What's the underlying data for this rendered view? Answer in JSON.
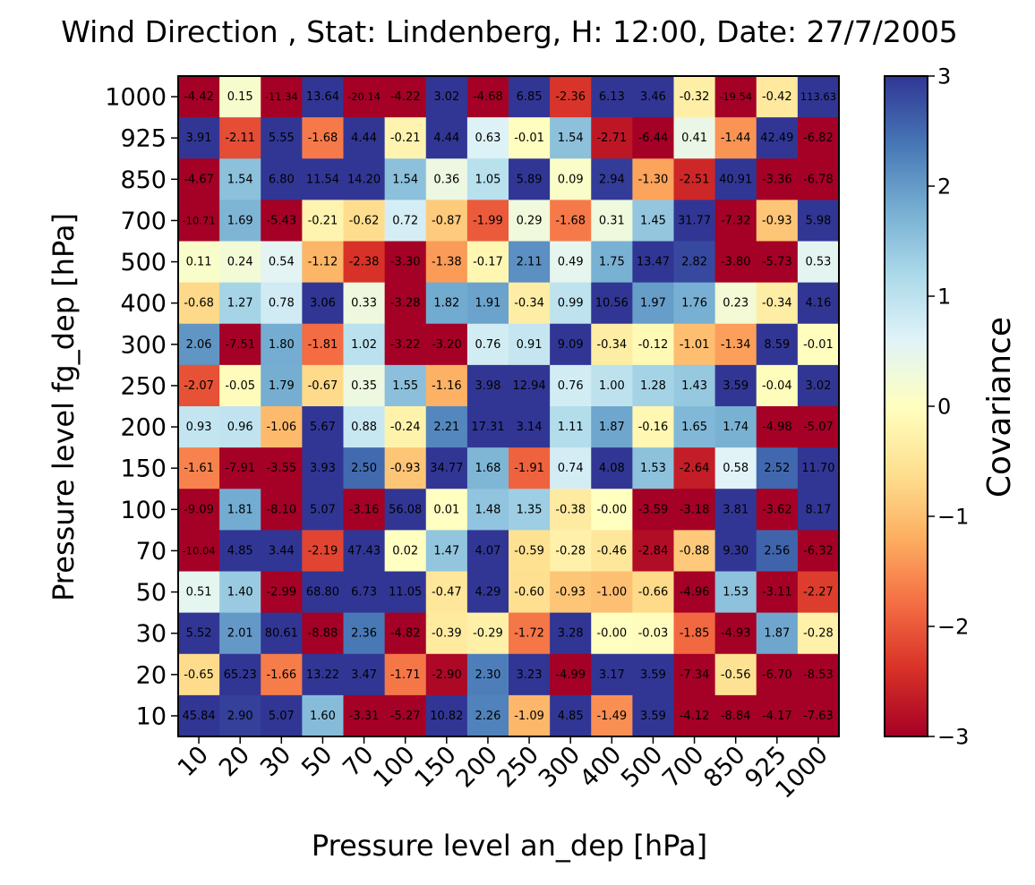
{
  "chart_data": {
    "type": "heatmap",
    "title": "Wind Direction , Stat: Lindenberg, H: 12:00, Date: 27/7/2005",
    "xlabel": "Pressure level an_dep [hPa]",
    "ylabel": "Pressure level fg_dep [hPa]",
    "x_categories": [
      "10",
      "20",
      "30",
      "50",
      "70",
      "100",
      "150",
      "200",
      "250",
      "300",
      "400",
      "500",
      "700",
      "850",
      "925",
      "1000"
    ],
    "y_categories": [
      "1000",
      "925",
      "850",
      "700",
      "500",
      "400",
      "300",
      "250",
      "200",
      "150",
      "100",
      "70",
      "50",
      "30",
      "20",
      "10"
    ],
    "colorbar": {
      "label": "Covariance",
      "range": [
        -3,
        3
      ],
      "ticks": [
        3,
        2,
        1,
        0,
        -1,
        -2,
        -3
      ],
      "tick_labels": [
        "3",
        "2",
        "1",
        "0",
        "−1",
        "−2",
        "−3"
      ],
      "colormap": "RdYlBu"
    },
    "values": [
      [
        "-4.42",
        "0.15",
        "-11.34",
        "13.64",
        "-20.14",
        "-4.22",
        "3.02",
        "-4.68",
        "6.85",
        "-2.36",
        "6.13",
        "3.46",
        "-0.32",
        "-19.54",
        "-0.42",
        "113.63"
      ],
      [
        "3.91",
        "-2.11",
        "5.55",
        "-1.68",
        "4.44",
        "-0.21",
        "4.44",
        "0.63",
        "-0.01",
        "1.54",
        "-2.71",
        "-6.44",
        "0.41",
        "-1.44",
        "42.49",
        "-6.82"
      ],
      [
        "-4.67",
        "1.54",
        "6.80",
        "11.54",
        "14.20",
        "1.54",
        "0.36",
        "1.05",
        "5.89",
        "0.09",
        "2.94",
        "-1.30",
        "-2.51",
        "40.91",
        "-3.36",
        "-6.78"
      ],
      [
        "-10.71",
        "1.69",
        "-5.43",
        "-0.21",
        "-0.62",
        "0.72",
        "-0.87",
        "-1.99",
        "0.29",
        "-1.68",
        "0.31",
        "1.45",
        "31.77",
        "-7.32",
        "-0.93",
        "5.98"
      ],
      [
        "0.11",
        "0.24",
        "0.54",
        "-1.12",
        "-2.38",
        "-3.30",
        "-1.38",
        "-0.17",
        "2.11",
        "0.49",
        "1.75",
        "13.47",
        "2.82",
        "-3.80",
        "-5.73",
        "0.53"
      ],
      [
        "-0.68",
        "1.27",
        "0.78",
        "3.06",
        "0.33",
        "-3.28",
        "1.82",
        "1.91",
        "-0.34",
        "0.99",
        "10.56",
        "1.97",
        "1.76",
        "0.23",
        "-0.34",
        "4.16"
      ],
      [
        "2.06",
        "-7.51",
        "1.80",
        "-1.81",
        "1.02",
        "-3.22",
        "-3.20",
        "0.76",
        "0.91",
        "9.09",
        "-0.34",
        "-0.12",
        "-1.01",
        "-1.34",
        "8.59",
        "-0.01"
      ],
      [
        "-2.07",
        "-0.05",
        "1.79",
        "-0.67",
        "0.35",
        "1.55",
        "-1.16",
        "3.98",
        "12.94",
        "0.76",
        "1.00",
        "1.28",
        "1.43",
        "3.59",
        "-0.04",
        "3.02"
      ],
      [
        "0.93",
        "0.96",
        "-1.06",
        "5.67",
        "0.88",
        "-0.24",
        "2.21",
        "17.31",
        "3.14",
        "1.11",
        "1.87",
        "-0.16",
        "1.65",
        "1.74",
        "-4.98",
        "-5.07"
      ],
      [
        "-1.61",
        "-7.91",
        "-3.55",
        "3.93",
        "2.50",
        "-0.93",
        "34.77",
        "1.68",
        "-1.91",
        "0.74",
        "4.08",
        "1.53",
        "-2.64",
        "0.58",
        "2.52",
        "11.70"
      ],
      [
        "-9.09",
        "1.81",
        "-8.10",
        "5.07",
        "-3.16",
        "56.08",
        "0.01",
        "1.48",
        "1.35",
        "-0.38",
        "-0.00",
        "-3.59",
        "-3.18",
        "3.81",
        "-3.62",
        "8.17"
      ],
      [
        "-10.04",
        "4.85",
        "3.44",
        "-2.19",
        "47.43",
        "0.02",
        "1.47",
        "4.07",
        "-0.59",
        "-0.28",
        "-0.46",
        "-2.84",
        "-0.88",
        "9.30",
        "2.56",
        "-6.32"
      ],
      [
        "0.51",
        "1.40",
        "-2.99",
        "68.80",
        "6.73",
        "11.05",
        "-0.47",
        "4.29",
        "-0.60",
        "-0.93",
        "-1.00",
        "-0.66",
        "-4.96",
        "1.53",
        "-3.11",
        "-2.27"
      ],
      [
        "5.52",
        "2.01",
        "80.61",
        "-8.88",
        "2.36",
        "-4.82",
        "-0.39",
        "-0.29",
        "-1.72",
        "3.28",
        "-0.00",
        "-0.03",
        "-1.85",
        "-4.93",
        "1.87",
        "-0.28"
      ],
      [
        "-0.65",
        "65.23",
        "-1.66",
        "13.22",
        "3.47",
        "-1.71",
        "-2.90",
        "2.30",
        "3.23",
        "-4.99",
        "3.17",
        "3.59",
        "-7.34",
        "-0.56",
        "-6.70",
        "-8.53"
      ],
      [
        "45.84",
        "2.90",
        "5.07",
        "1.60",
        "-3.31",
        "-5.27",
        "10.82",
        "2.26",
        "-1.09",
        "4.85",
        "-1.49",
        "3.59",
        "-4.12",
        "-8.84",
        "-4.17",
        "-7.63"
      ]
    ]
  }
}
